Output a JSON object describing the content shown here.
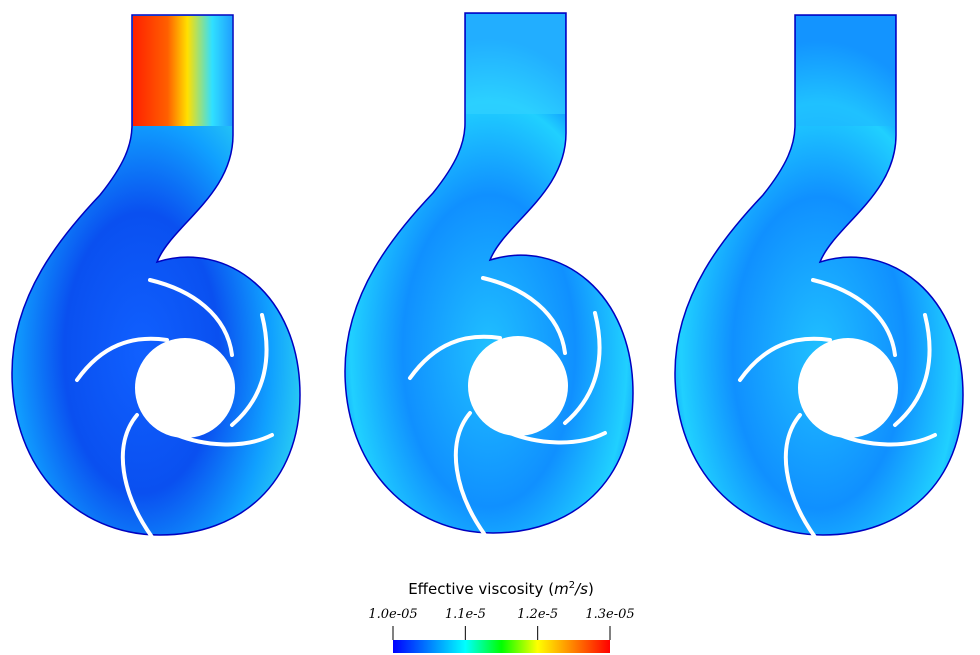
{
  "colorbar": {
    "title": [
      "Effective viscosity (",
      "m",
      "2",
      "/s",
      ")"
    ],
    "range": [
      1e-05,
      1.3e-05
    ],
    "ticks": [
      {
        "value": 1e-05,
        "label": "1.0e-05"
      },
      {
        "value": 1.1e-05,
        "label": "1.1e-5"
      },
      {
        "value": 1.2e-05,
        "label": "1.2e-5"
      },
      {
        "value": 1.3e-05,
        "label": "1.3e-05"
      }
    ],
    "colormap": [
      "#0000ff",
      "#0080ff",
      "#00ffff",
      "#00ff00",
      "#ffff00",
      "#ff8000",
      "#ff0000"
    ]
  }
}
